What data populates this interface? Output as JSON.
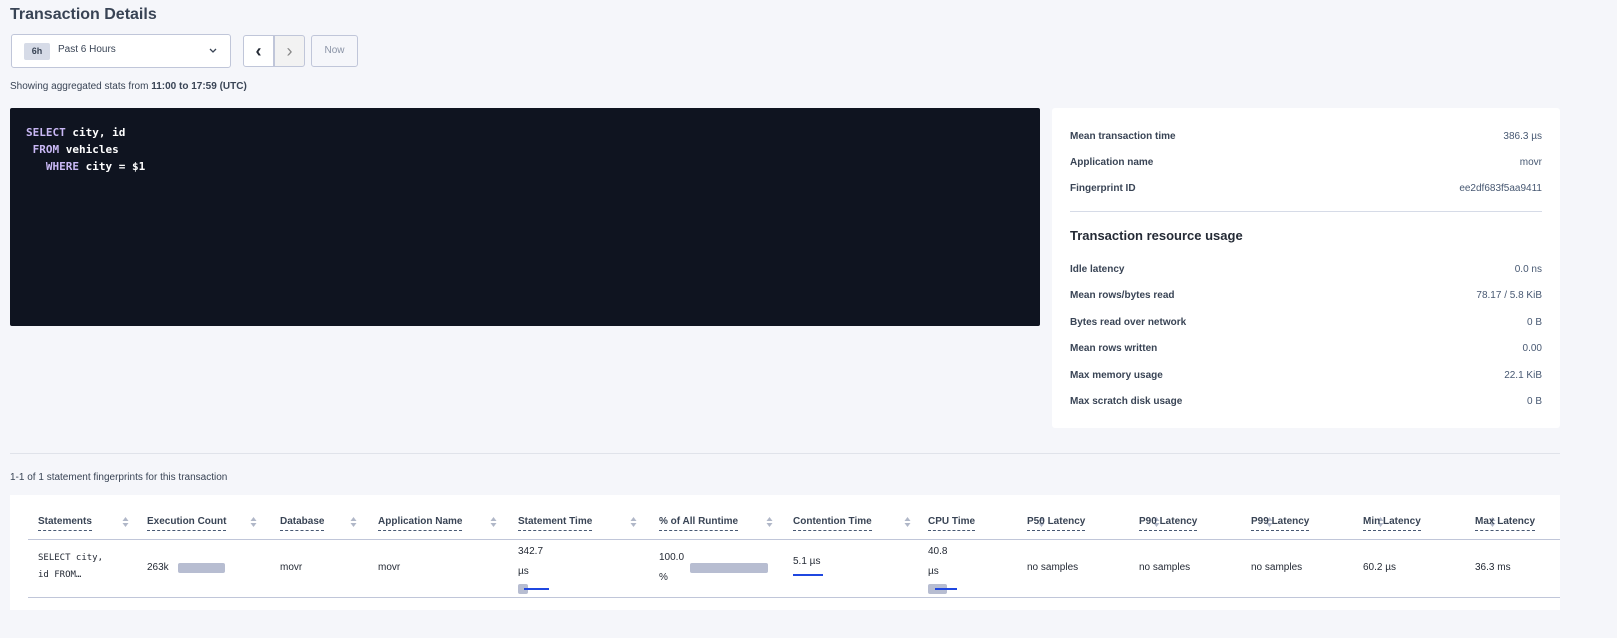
{
  "title": "Transaction Details",
  "time_range": {
    "badge": "6h",
    "label": "Past 6 Hours",
    "prev": "‹",
    "next": "›",
    "now": "Now"
  },
  "showing": {
    "prefix": "Showing aggregated stats from ",
    "range": "11:00 to 17:59 (UTC)"
  },
  "query": {
    "l1_kw": "SELECT",
    "l1": " city, id",
    "l2_kw": " FROM",
    "l2": " vehicles",
    "l3_kw": "   WHERE",
    "l3": " city = $1"
  },
  "summary": [
    {
      "label": "Mean transaction time",
      "value": "386.3 µs"
    },
    {
      "label": "Application name",
      "value": "movr"
    },
    {
      "label": "Fingerprint ID",
      "value": "ee2df683f5aa9411"
    }
  ],
  "resource_title": "Transaction resource usage",
  "resources": [
    {
      "label": "Idle latency",
      "value": "0.0 ns"
    },
    {
      "label": "Mean rows/bytes read",
      "value": "78.17 / 5.8 KiB"
    },
    {
      "label": "Bytes read over network",
      "value": "0 B"
    },
    {
      "label": "Mean rows written",
      "value": "0.00"
    },
    {
      "label": "Max memory usage",
      "value": "22.1 KiB"
    },
    {
      "label": "Max scratch disk usage",
      "value": "0 B"
    }
  ],
  "count_text": "1-1 of 1 statement fingerprints for this transaction",
  "columns": [
    "Statements",
    "Execution Count",
    "Database",
    "Application Name",
    "Statement Time",
    "% of All Runtime",
    "Contention Time",
    "CPU Time",
    "P50 Latency",
    "P90 Latency",
    "P99 Latency",
    "Min Latency",
    "Max Latency"
  ],
  "row": {
    "statement": "SELECT city,\nid FROM…",
    "exec_count": "263k",
    "database": "movr",
    "app": "movr",
    "stmt_time": "342.7\nµs",
    "runtime_pct": "100.0\n%",
    "contention": "5.1 µs",
    "cpu": "40.8\nµs",
    "p50": "no samples",
    "p90": "no samples",
    "p99": "no samples",
    "min": "60.2 µs",
    "max": "36.3 ms"
  }
}
